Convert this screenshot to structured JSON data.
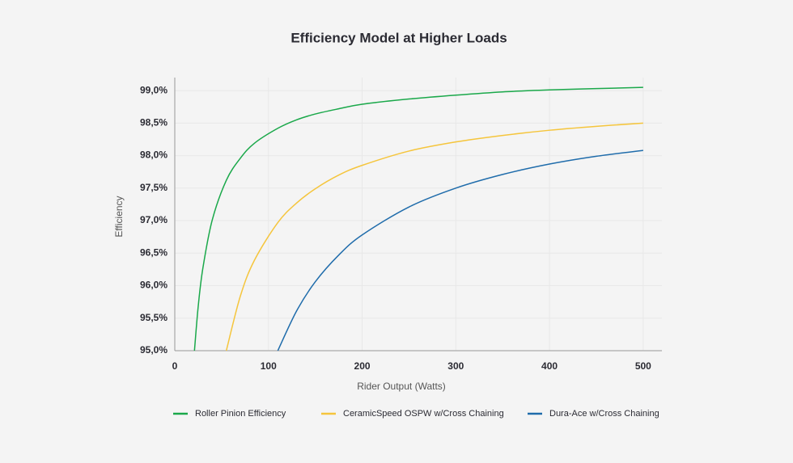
{
  "chart_data": {
    "type": "line",
    "title": "Efficiency Model at Higher Loads",
    "x_label": "Rider Output (Watts)",
    "y_label": "Efficiency",
    "x": [
      21,
      25,
      30,
      40,
      55,
      70,
      85,
      110,
      130,
      150,
      175,
      200,
      250,
      300,
      350,
      400,
      450,
      500
    ],
    "series": [
      {
        "name": "Roller Pinion Efficiency",
        "color": "#1aa84a",
        "values": [
          95.0,
          95.68,
          96.27,
          97.01,
          97.62,
          97.96,
          98.19,
          98.42,
          98.55,
          98.64,
          98.72,
          98.79,
          98.87,
          98.93,
          98.98,
          99.01,
          99.03,
          99.05
        ]
      },
      {
        "name": "CeramicSpeed OSPW w/Cross Chaining",
        "color": "#f5c53c",
        "values": [
          null,
          null,
          null,
          null,
          95.0,
          95.84,
          96.39,
          96.97,
          97.27,
          97.49,
          97.7,
          97.85,
          98.07,
          98.21,
          98.31,
          98.39,
          98.45,
          98.5
        ]
      },
      {
        "name": "Dura-Ace w/Cross Chaining",
        "color": "#1f6cab",
        "values": [
          null,
          null,
          null,
          null,
          null,
          null,
          null,
          95.0,
          95.61,
          96.06,
          96.47,
          96.78,
          97.21,
          97.5,
          97.71,
          97.87,
          97.99,
          98.08
        ]
      }
    ],
    "xlim": [
      0,
      520
    ],
    "ylim": [
      95,
      99.2
    ],
    "xticks": [
      0,
      100,
      200,
      300,
      400,
      500
    ],
    "yticks": [
      {
        "value": 95.0,
        "label": "95,0%"
      },
      {
        "value": 95.5,
        "label": "95,5%"
      },
      {
        "value": 96.0,
        "label": "96,0%"
      },
      {
        "value": 96.5,
        "label": "96,5%"
      },
      {
        "value": 97.0,
        "label": "97,0%"
      },
      {
        "value": 97.5,
        "label": "97,5%"
      },
      {
        "value": 98.0,
        "label": "98,0%"
      },
      {
        "value": 98.5,
        "label": "98,5%"
      },
      {
        "value": 99.0,
        "label": "99,0%"
      }
    ],
    "grid": true,
    "legend": "bottom"
  }
}
